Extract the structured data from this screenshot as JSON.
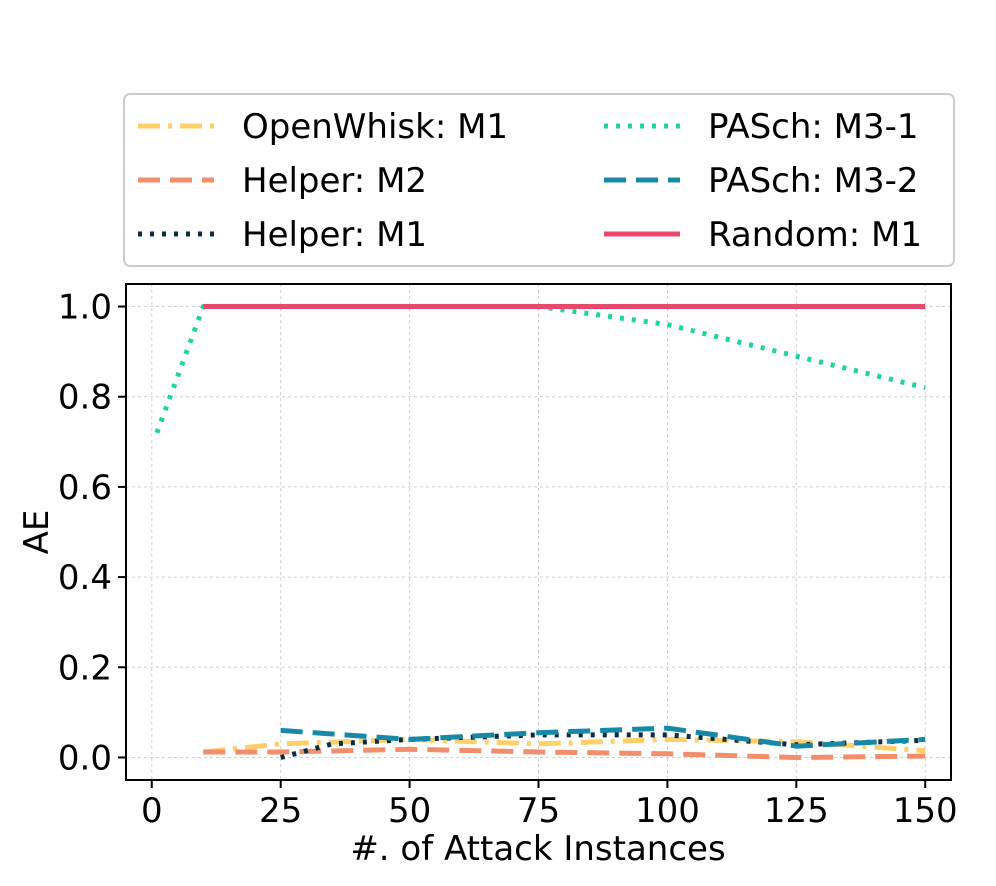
{
  "chart_data": {
    "type": "line",
    "title": "",
    "xlabel": "#. of Attack Instances",
    "ylabel": "AE",
    "xlim": [
      -5,
      155
    ],
    "ylim": [
      -0.05,
      1.05
    ],
    "xticks": [
      0,
      25,
      50,
      75,
      100,
      125,
      150
    ],
    "yticks": [
      0.0,
      0.2,
      0.4,
      0.6,
      0.8,
      1.0
    ],
    "xtick_labels": [
      "0",
      "25",
      "50",
      "75",
      "100",
      "125",
      "150"
    ],
    "ytick_labels": [
      "0.0",
      "0.2",
      "0.4",
      "0.6",
      "0.8",
      "1.0"
    ],
    "grid": true,
    "legend_position": "top, above plot, two columns",
    "series": [
      {
        "name": "OpenWhisk: M1",
        "color": "#FFD06A",
        "dash": "dashdot",
        "x": [
          10,
          25,
          50,
          75,
          100,
          125,
          150
        ],
        "y": [
          0.012,
          0.03,
          0.04,
          0.03,
          0.04,
          0.035,
          0.015
        ]
      },
      {
        "name": "Helper: M2",
        "color": "#F28E6B",
        "dash": "dashed",
        "x": [
          10,
          25,
          50,
          75,
          100,
          125,
          150
        ],
        "y": [
          0.012,
          0.012,
          0.018,
          0.012,
          0.008,
          0.0,
          0.003
        ]
      },
      {
        "name": "Helper: M1",
        "color": "#0B2E44",
        "dash": "dotted",
        "x": [
          25,
          35,
          50,
          75,
          100,
          125,
          150
        ],
        "y": [
          0.0,
          0.03,
          0.04,
          0.05,
          0.05,
          0.028,
          0.038
        ]
      },
      {
        "name": "PASch: M3-1",
        "color": "#1FD3A2",
        "dash": "dotted",
        "x": [
          1,
          10,
          75,
          100,
          125,
          150
        ],
        "y": [
          0.72,
          1.0,
          1.0,
          0.96,
          0.89,
          0.82
        ]
      },
      {
        "name": "PASch: M3-2",
        "color": "#1789A8",
        "dash": "dashed",
        "x": [
          25,
          50,
          75,
          100,
          125,
          150
        ],
        "y": [
          0.06,
          0.04,
          0.055,
          0.065,
          0.025,
          0.04
        ]
      },
      {
        "name": "Random: M1",
        "color": "#E8496D",
        "dash": "solid",
        "x": [
          10,
          25,
          50,
          75,
          100,
          125,
          150
        ],
        "y": [
          1.0,
          1.0,
          1.0,
          1.0,
          1.0,
          1.0,
          1.0
        ]
      }
    ]
  }
}
